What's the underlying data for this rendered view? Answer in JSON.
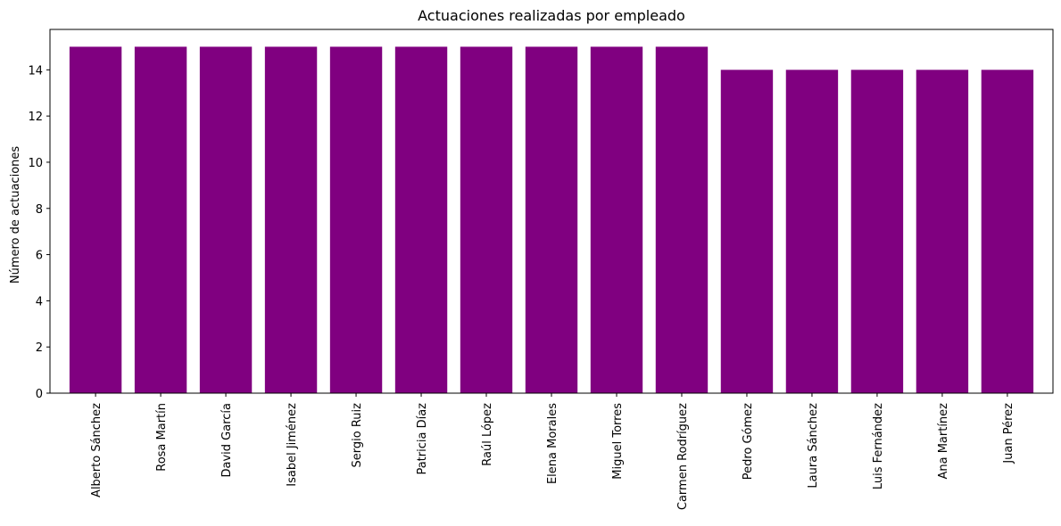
{
  "chart_data": {
    "type": "bar",
    "title": "Actuaciones realizadas por empleado",
    "xlabel": "",
    "ylabel": "Número de actuaciones",
    "categories": [
      "Alberto Sánchez",
      "Rosa Martín",
      "David García",
      "Isabel Jiménez",
      "Sergio Ruiz",
      "Patricia Díaz",
      "Raúl López",
      "Elena Morales",
      "Miguel Torres",
      "Carmen Rodríguez",
      "Pedro Gómez",
      "Laura Sánchez",
      "Luis Fernández",
      "Ana Martínez",
      "Juan Pérez"
    ],
    "values": [
      15,
      15,
      15,
      15,
      15,
      15,
      15,
      15,
      15,
      15,
      14,
      14,
      14,
      14,
      14
    ],
    "ylim": [
      0,
      15.75
    ],
    "yticks": [
      0,
      2,
      4,
      6,
      8,
      10,
      12,
      14
    ],
    "bar_color": "#800080",
    "grid": false,
    "legend": "none"
  }
}
